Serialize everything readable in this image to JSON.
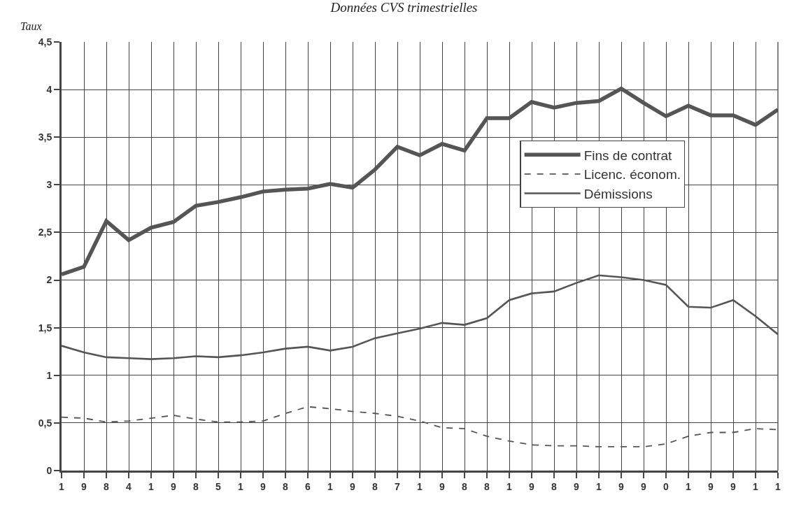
{
  "chart_data": {
    "type": "line",
    "title": "Données CVS trimestrielles",
    "ylabel": "Taux",
    "categories": [
      "1",
      "9",
      "8",
      "4",
      "1",
      "9",
      "8",
      "5",
      "1",
      "9",
      "8",
      "6",
      "1",
      "9",
      "8",
      "7",
      "1",
      "9",
      "8",
      "8",
      "1",
      "9",
      "8",
      "9",
      "1",
      "9",
      "9",
      "0",
      "1",
      "9",
      "9",
      "1",
      "1"
    ],
    "series": [
      {
        "name": "Fins de contrat",
        "color": "#555555",
        "line_style": "solid",
        "values": [
          2.06,
          2.14,
          2.62,
          2.42,
          2.55,
          2.61,
          2.78,
          2.82,
          2.87,
          2.93,
          2.95,
          2.96,
          3.01,
          2.97,
          3.16,
          3.4,
          3.31,
          3.43,
          3.36,
          3.7,
          3.7,
          3.87,
          3.81,
          3.86,
          3.88,
          4.01,
          3.86,
          3.72,
          3.83,
          3.73,
          3.73,
          3.63,
          3.79
        ]
      },
      {
        "name": "Licenc. économ.",
        "color": "#555555",
        "line_style": "dashed",
        "values": [
          0.56,
          0.55,
          0.51,
          0.52,
          0.55,
          0.58,
          0.54,
          0.51,
          0.51,
          0.52,
          0.6,
          0.67,
          0.65,
          0.62,
          0.6,
          0.57,
          0.52,
          0.45,
          0.44,
          0.36,
          0.31,
          0.27,
          0.26,
          0.26,
          0.25,
          0.25,
          0.25,
          0.28,
          0.36,
          0.4,
          0.4,
          0.44,
          0.43
        ]
      },
      {
        "name": "Démissions",
        "color": "#555555",
        "line_style": "solid",
        "values": [
          1.31,
          1.24,
          1.19,
          1.18,
          1.17,
          1.18,
          1.2,
          1.19,
          1.21,
          1.24,
          1.28,
          1.3,
          1.26,
          1.3,
          1.39,
          1.44,
          1.49,
          1.55,
          1.53,
          1.6,
          1.79,
          1.86,
          1.88,
          1.97,
          2.05,
          2.03,
          2.0,
          1.95,
          1.72,
          1.71,
          1.79,
          1.62,
          1.43
        ]
      }
    ],
    "ylim": [
      0,
      4.5
    ],
    "yticks": [
      {
        "value": 0,
        "label": "0"
      },
      {
        "value": 0.5,
        "label": "0,5"
      },
      {
        "value": 1,
        "label": "1"
      },
      {
        "value": 1.5,
        "label": "1,5"
      },
      {
        "value": 2,
        "label": "2"
      },
      {
        "value": 2.5,
        "label": "2,5"
      },
      {
        "value": 3,
        "label": "3"
      },
      {
        "value": 3.5,
        "label": "3,5"
      },
      {
        "value": 4,
        "label": "4"
      },
      {
        "value": 4.5,
        "label": "4,5"
      }
    ],
    "grid": true,
    "legend": "top right",
    "marker": "none"
  }
}
